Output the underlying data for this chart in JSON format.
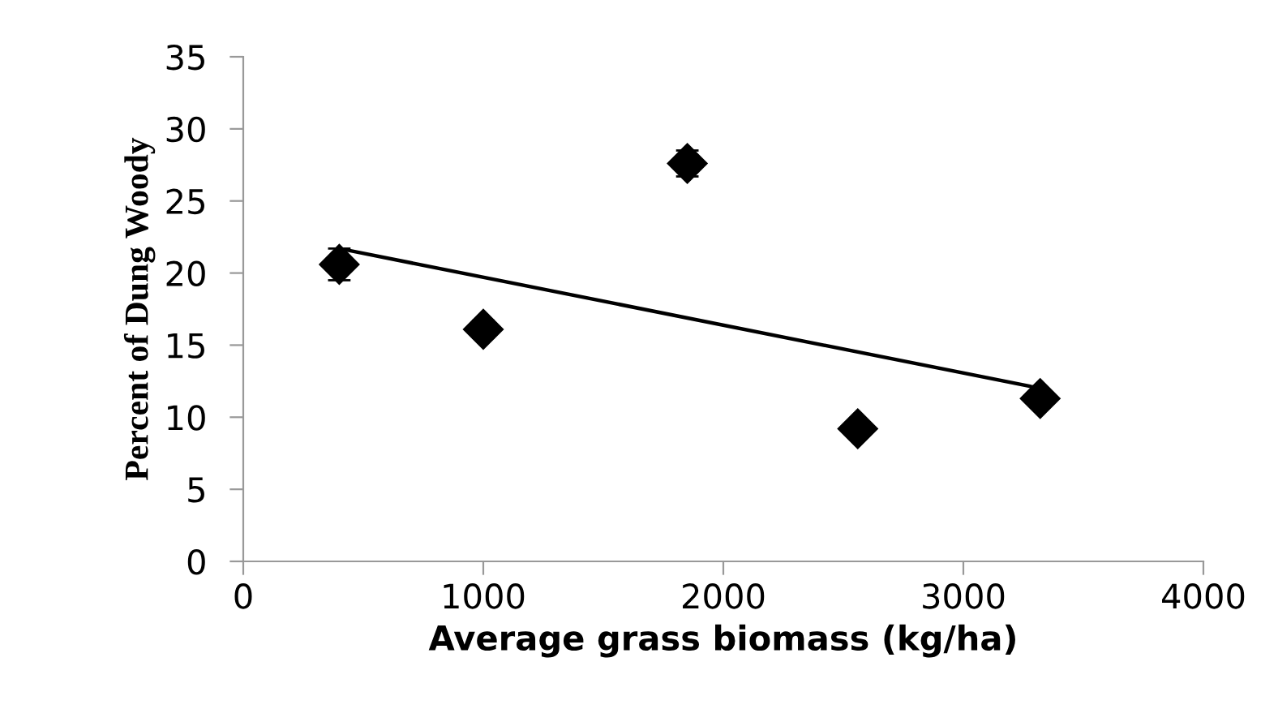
{
  "chart_data": {
    "type": "scatter",
    "xlabel": "Average grass biomass (kg/ha)",
    "ylabel": "Percent of Dung Woody",
    "xlim": [
      0,
      4000
    ],
    "xticks": [
      0,
      1000,
      2000,
      3000,
      4000
    ],
    "ylim": [
      0,
      35
    ],
    "yticks": [
      0,
      5,
      10,
      15,
      20,
      25,
      30,
      35
    ],
    "grid": false,
    "legend": false,
    "marker": "diamond",
    "series": [
      {
        "color": "#000000",
        "x": [
          400,
          1000,
          1850,
          2560,
          3320
        ],
        "values": [
          20.6,
          16.1,
          27.6,
          9.2,
          11.3
        ],
        "errors": [
          1.1,
          0.6,
          0.9,
          0.5,
          0.5
        ]
      },
      {
        "type": "line",
        "color": "#000000",
        "x": [
          400,
          3320
        ],
        "values": [
          21.7,
          12.0
        ],
        "line_style": "solid",
        "marker": "none"
      }
    ]
  }
}
